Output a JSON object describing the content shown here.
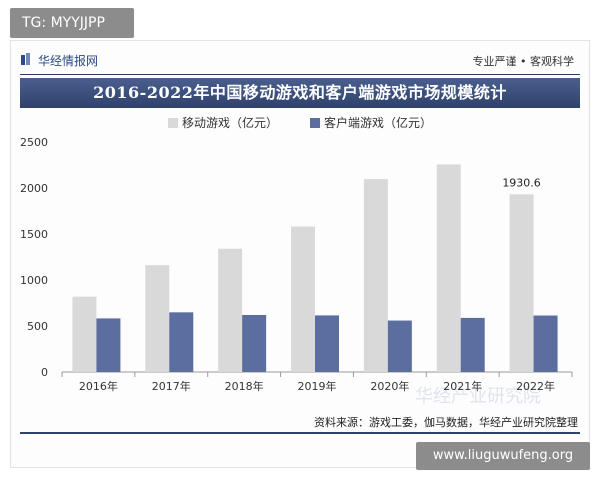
{
  "overlay": {
    "tg_label": "TG: MYYJJPP",
    "site_url": "www.liuguwufeng.org"
  },
  "header": {
    "brand": "华经情报网",
    "slogan": "专业严谨 • 客观科学"
  },
  "footer": {
    "source": "资料来源：游戏工委，伽马数据，华经产业研究院整理"
  },
  "watermark": "华经产业研究院",
  "colors": {
    "mobile": "#d9d9d9",
    "client": "#5b6e9f",
    "title_bg": "#3a4d7a"
  },
  "chart_data": {
    "type": "bar",
    "title": "2016-2022年中国移动游戏和客户端游戏市场规模统计",
    "categories": [
      "2016年",
      "2017年",
      "2018年",
      "2019年",
      "2020年",
      "2021年",
      "2022年"
    ],
    "series": [
      {
        "name": "移动游戏（亿元）",
        "values": [
          819.2,
          1161.2,
          1339.6,
          1581.1,
          2096.8,
          2255.4,
          1930.6
        ]
      },
      {
        "name": "客户端游戏（亿元）",
        "values": [
          582.5,
          648.6,
          619.6,
          615.1,
          559.2,
          588.0,
          613.7
        ]
      }
    ],
    "data_labels": [
      {
        "series": 0,
        "index": 6,
        "text": "1930.6"
      }
    ],
    "ylim": [
      0,
      2500
    ],
    "yticks": [
      0,
      500,
      1000,
      1500,
      2000,
      2500
    ],
    "grid": false,
    "legend": "top"
  }
}
